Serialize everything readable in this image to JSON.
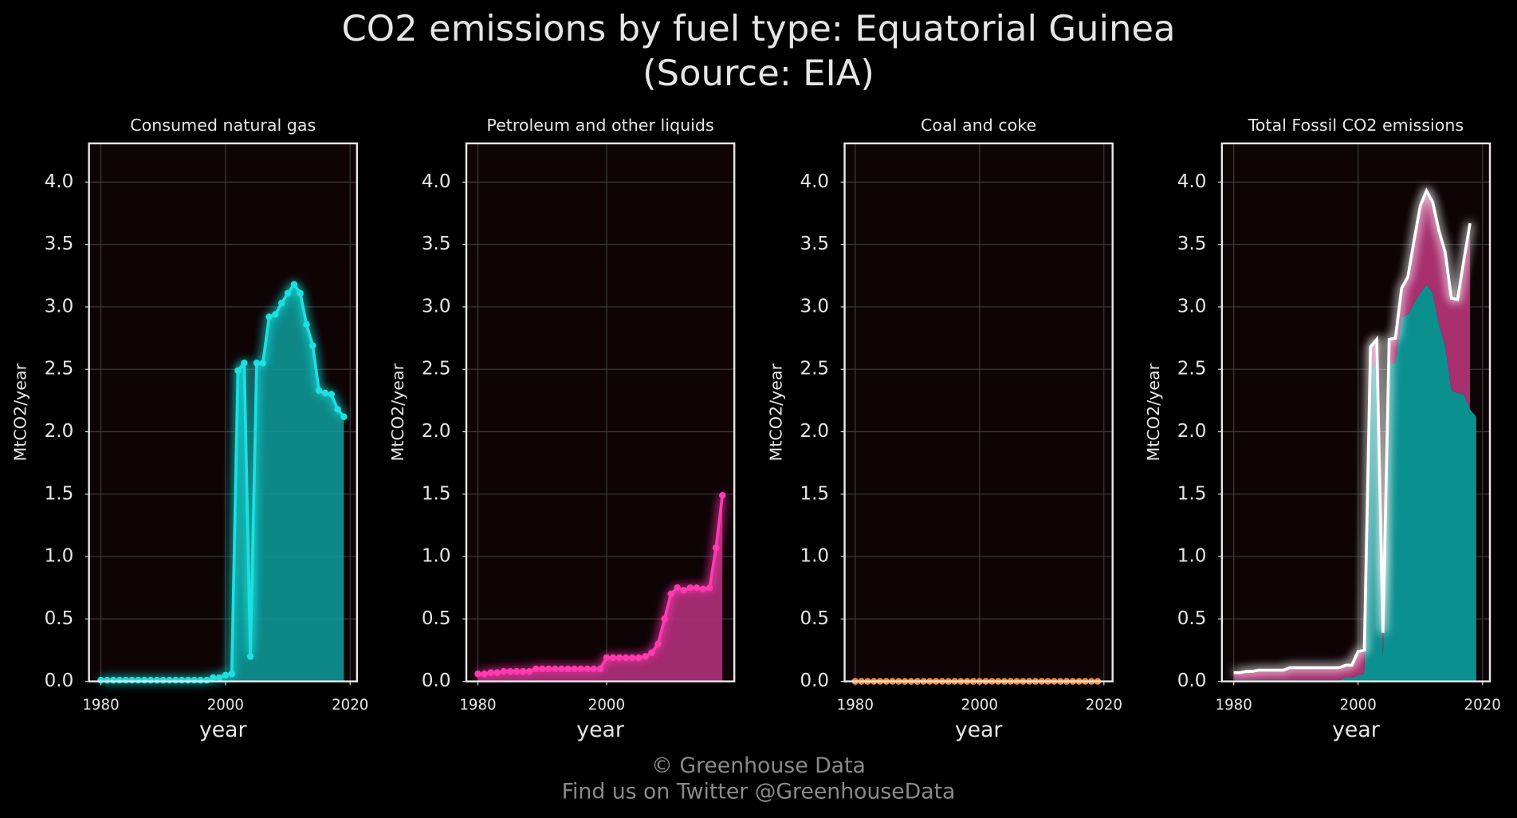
{
  "title": "CO2 emissions by fuel type: Equatorial Guinea",
  "subtitle": "(Source: EIA)",
  "footer": [
    "© Greenhouse Data",
    "Find us on Twitter @GreenhouseData"
  ],
  "chart_data": [
    {
      "type": "area",
      "title": "Consumed natural gas",
      "xlabel": "year",
      "ylabel": "MtCO2/year",
      "x": [
        1980,
        1981,
        1982,
        1983,
        1984,
        1985,
        1986,
        1987,
        1988,
        1989,
        1990,
        1991,
        1992,
        1993,
        1994,
        1995,
        1996,
        1997,
        1998,
        1999,
        2000,
        2001,
        2002,
        2003,
        2004,
        2005,
        2006,
        2007,
        2008,
        2009,
        2010,
        2011,
        2012,
        2013,
        2014,
        2015,
        2016,
        2017,
        2018,
        2019
      ],
      "values": [
        0.01,
        0.01,
        0.01,
        0.01,
        0.01,
        0.01,
        0.01,
        0.01,
        0.01,
        0.01,
        0.01,
        0.01,
        0.01,
        0.01,
        0.01,
        0.01,
        0.01,
        0.01,
        0.03,
        0.03,
        0.05,
        0.06,
        2.49,
        2.55,
        0.2,
        2.55,
        2.55,
        2.92,
        2.94,
        3.03,
        3.11,
        3.18,
        3.11,
        2.86,
        2.69,
        2.33,
        2.31,
        2.3,
        2.18,
        2.12
      ],
      "color": "#1fe0e0",
      "fill_color": "#0e9696",
      "xlim": [
        1978.1,
        2021.1
      ],
      "ylim": [
        0,
        4.31
      ],
      "xticks": [
        1980,
        2000,
        2020
      ],
      "yticks": [
        {
          "value": 0,
          "label": "0.0"
        },
        0.5,
        {
          "value": 1,
          "label": "1.0"
        },
        1.5,
        {
          "value": 2,
          "label": "2.0"
        },
        2.5,
        {
          "value": 3,
          "label": "3.0"
        },
        3.5,
        {
          "value": 4,
          "label": "4.0"
        }
      ],
      "grid": true
    },
    {
      "type": "area",
      "title": "Petroleum and other liquids",
      "xlabel": "year",
      "ylabel": "MtCO2/year",
      "x": [
        1980,
        1981,
        1982,
        1983,
        1984,
        1985,
        1986,
        1987,
        1988,
        1989,
        1990,
        1991,
        1992,
        1993,
        1994,
        1995,
        1996,
        1997,
        1998,
        1999,
        2000,
        2001,
        2002,
        2003,
        2004,
        2005,
        2006,
        2007,
        2008,
        2009,
        2010,
        2011,
        2012,
        2013,
        2014,
        2015,
        2016,
        2017,
        2018
      ],
      "values": [
        0.06,
        0.06,
        0.07,
        0.07,
        0.08,
        0.08,
        0.08,
        0.08,
        0.08,
        0.1,
        0.1,
        0.1,
        0.1,
        0.1,
        0.1,
        0.1,
        0.1,
        0.1,
        0.1,
        0.1,
        0.19,
        0.19,
        0.19,
        0.19,
        0.19,
        0.19,
        0.2,
        0.23,
        0.3,
        0.5,
        0.7,
        0.75,
        0.73,
        0.75,
        0.75,
        0.74,
        0.75,
        1.07,
        1.49
      ],
      "color": "#ff3ab0",
      "fill_color": "#b0307a",
      "xlim": [
        1978.2,
        2019.85
      ],
      "ylim": [
        0,
        4.31
      ],
      "xticks": [
        1980,
        2000
      ],
      "yticks": [
        {
          "value": 0,
          "label": "0.0"
        },
        0.5,
        {
          "value": 1,
          "label": "1.0"
        },
        1.5,
        {
          "value": 2,
          "label": "2.0"
        },
        2.5,
        {
          "value": 3,
          "label": "3.0"
        },
        3.5,
        {
          "value": 4,
          "label": "4.0"
        }
      ],
      "grid": true
    },
    {
      "type": "area",
      "title": "Coal and coke",
      "xlabel": "year",
      "ylabel": "MtCO2/year",
      "x": [
        1980,
        1981,
        1982,
        1983,
        1984,
        1985,
        1986,
        1987,
        1988,
        1989,
        1990,
        1991,
        1992,
        1993,
        1994,
        1995,
        1996,
        1997,
        1998,
        1999,
        2000,
        2001,
        2002,
        2003,
        2004,
        2005,
        2006,
        2007,
        2008,
        2009,
        2010,
        2011,
        2012,
        2013,
        2014,
        2015,
        2016,
        2017,
        2018,
        2019
      ],
      "values": [
        0,
        0,
        0,
        0,
        0,
        0,
        0,
        0,
        0,
        0,
        0,
        0,
        0,
        0,
        0,
        0,
        0,
        0,
        0,
        0,
        0,
        0,
        0,
        0,
        0,
        0,
        0,
        0,
        0,
        0,
        0,
        0,
        0,
        0,
        0,
        0,
        0,
        0,
        0,
        0
      ],
      "color": "#ff8a30",
      "fill_color": "#b05a20",
      "xlim": [
        1978.3,
        2021.4
      ],
      "ylim": [
        0,
        4.31
      ],
      "xticks": [
        1980,
        2000,
        2020
      ],
      "yticks": [
        {
          "value": 0,
          "label": "0.0"
        },
        0.5,
        {
          "value": 1,
          "label": "1.0"
        },
        1.5,
        {
          "value": 2,
          "label": "2.0"
        },
        2.5,
        {
          "value": 3,
          "label": "3.0"
        },
        3.5,
        {
          "value": 4,
          "label": "4.0"
        }
      ],
      "grid": true
    },
    {
      "type": "stacked_area",
      "title": "Total Fossil CO2 emissions",
      "xlabel": "year",
      "ylabel": "MtCO2/year",
      "x": [
        1980,
        1981,
        1982,
        1983,
        1984,
        1985,
        1986,
        1987,
        1988,
        1989,
        1990,
        1991,
        1992,
        1993,
        1994,
        1995,
        1996,
        1997,
        1998,
        1999,
        2000,
        2001,
        2002,
        2003,
        2004,
        2005,
        2006,
        2007,
        2008,
        2009,
        2010,
        2011,
        2012,
        2013,
        2014,
        2015,
        2016,
        2017,
        2018,
        2019
      ],
      "series": [
        {
          "color": "#0b9090",
          "values": [
            0.01,
            0.01,
            0.01,
            0.01,
            0.01,
            0.01,
            0.01,
            0.01,
            0.01,
            0.01,
            0.01,
            0.01,
            0.01,
            0.01,
            0.01,
            0.01,
            0.01,
            0.01,
            0.03,
            0.03,
            0.05,
            0.06,
            2.49,
            2.55,
            0.2,
            2.55,
            2.55,
            2.92,
            2.94,
            3.03,
            3.11,
            3.18,
            3.11,
            2.86,
            2.69,
            2.33,
            2.31,
            2.3,
            2.18,
            2.12
          ]
        },
        {
          "color": "#a8306f",
          "values": [
            0.06,
            0.06,
            0.07,
            0.07,
            0.08,
            0.08,
            0.08,
            0.08,
            0.08,
            0.1,
            0.1,
            0.1,
            0.1,
            0.1,
            0.1,
            0.1,
            0.1,
            0.1,
            0.1,
            0.1,
            0.19,
            0.19,
            0.19,
            0.19,
            0.19,
            0.19,
            0.2,
            0.23,
            0.3,
            0.5,
            0.7,
            0.75,
            0.73,
            0.75,
            0.75,
            0.74,
            0.75,
            1.07,
            1.49,
            null
          ]
        }
      ],
      "line_color": "#ffffff",
      "xlim": [
        1978.1,
        2021.2
      ],
      "ylim": [
        0,
        4.31
      ],
      "xticks": [
        1980,
        2000,
        2020
      ],
      "yticks": [
        {
          "value": 0,
          "label": "0.0"
        },
        0.5,
        {
          "value": 1,
          "label": "1.0"
        },
        1.5,
        {
          "value": 2,
          "label": "2.0"
        },
        2.5,
        {
          "value": 3,
          "label": "3.0"
        },
        3.5,
        {
          "value": 4,
          "label": "4.0"
        }
      ],
      "grid": true
    }
  ]
}
